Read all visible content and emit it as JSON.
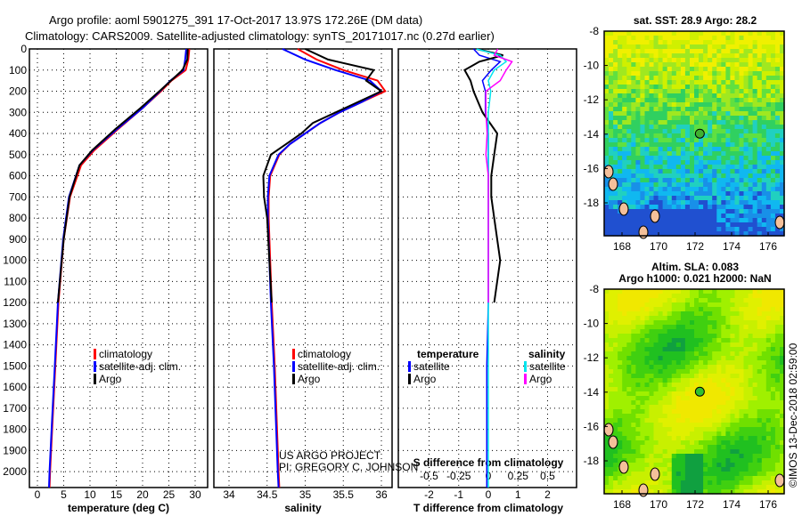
{
  "header": {
    "title1": "Argo profile: aoml 5901275_391 17-Oct-2017 13.97S 172.26E (DM data)",
    "title2": "Climatology: CARS2009. Satellite-adjusted climatology: synTS_20171017.nc (0.27d earlier)"
  },
  "credit": "©IMOS 13-Dec-2018 02:59:00",
  "project": [
    "US ARGO PROJECT",
    "PI: GREGORY C. JOHNSON"
  ],
  "colors": {
    "climatology": "#ff0000",
    "satellite": "#0000ff",
    "argo": "#000000",
    "sat_sal": "#00e5ee",
    "argo_sal": "#ff00ff"
  },
  "chart_data": [
    {
      "type": "line",
      "name": "temperature",
      "xlabel": "temperature (deg C)",
      "xlim": [
        -1.5,
        31.5
      ],
      "ylim": [
        2075,
        0
      ],
      "xticks": [
        0,
        5,
        10,
        15,
        20,
        25,
        30
      ],
      "yticks": [
        0,
        100,
        200,
        300,
        400,
        500,
        600,
        700,
        800,
        900,
        1000,
        1100,
        1200,
        1300,
        1400,
        1500,
        1600,
        1700,
        1800,
        1900,
        2000
      ],
      "legend": [
        "climatology",
        "satellite-adj. clim.",
        "Argo"
      ],
      "depth": [
        0,
        50,
        100,
        150,
        200,
        280,
        380,
        480,
        550,
        700,
        900,
        1200,
        1500,
        1800,
        2000,
        2075
      ],
      "series": [
        {
          "name": "climatology",
          "values": [
            28.9,
            28.7,
            28.2,
            25.5,
            23.5,
            20,
            15.3,
            10.8,
            8.3,
            6.2,
            5.0,
            4.0,
            3.4,
            2.8,
            2.4,
            2.3
          ]
        },
        {
          "name": "satellite-adj. clim.",
          "values": [
            28.3,
            28.1,
            27.8,
            25.3,
            23.3,
            20,
            15.1,
            10.5,
            8.0,
            6.0,
            4.9,
            3.9,
            3.3,
            2.7,
            2.3,
            2.2
          ]
        },
        {
          "name": "Argo",
          "values": [
            28.6,
            28.5,
            27.6,
            25.4,
            23.2,
            19.6,
            14.8,
            10.4,
            8.0,
            6.1,
            5.0,
            3.9,
            null,
            null,
            null,
            null
          ]
        }
      ]
    },
    {
      "type": "line",
      "name": "salinity",
      "xlabel": "salinity",
      "xlim": [
        33.8,
        36.2
      ],
      "ylim": [
        2075,
        0
      ],
      "xticks": [
        34,
        34.5,
        35,
        35.5,
        36
      ],
      "legend": [
        "climatology",
        "satellite-adj. clim.",
        "Argo"
      ],
      "depth": [
        0,
        50,
        100,
        150,
        200,
        250,
        300,
        350,
        400,
        450,
        500,
        600,
        700,
        800,
        1000,
        1200,
        1500,
        2000,
        2075
      ],
      "series": [
        {
          "name": "climatology",
          "values": [
            34.9,
            35.15,
            35.5,
            35.95,
            36.05,
            35.75,
            35.45,
            35.2,
            35.0,
            34.8,
            34.66,
            34.54,
            34.52,
            34.52,
            34.54,
            34.56,
            34.6,
            34.65,
            34.66
          ]
        },
        {
          "name": "satellite-adj. clim.",
          "values": [
            34.7,
            35.0,
            35.4,
            35.85,
            36.0,
            35.75,
            35.45,
            35.2,
            35.0,
            34.8,
            34.65,
            34.53,
            34.51,
            34.51,
            34.53,
            34.55,
            34.59,
            34.64,
            34.65
          ]
        },
        {
          "name": "Argo",
          "values": [
            35.0,
            35.3,
            35.9,
            35.8,
            36.0,
            35.7,
            35.4,
            35.1,
            34.95,
            34.75,
            34.55,
            34.45,
            34.46,
            34.5,
            34.53,
            34.56,
            null,
            null,
            null
          ]
        }
      ]
    },
    {
      "type": "line",
      "name": "difference",
      "xlabel": "T difference from climatology",
      "xlabel2": "S difference from climatology",
      "xlim_T": [
        -3,
        3
      ],
      "xlim_S": [
        -0.75,
        0.75
      ],
      "xticks_T": [
        -2,
        -1,
        0,
        1,
        2
      ],
      "xticks_S": [
        "-0.5",
        "-0.25",
        "0",
        "0.25",
        "0.5"
      ],
      "legend_T": {
        "title": "temperature",
        "items": [
          "satellite",
          "Argo"
        ]
      },
      "legend_S": {
        "title": "salinity",
        "items": [
          "satellite",
          "Argo"
        ]
      },
      "depth": [
        0,
        30,
        60,
        100,
        150,
        200,
        300,
        400,
        500,
        600,
        700,
        800,
        1000,
        1200,
        1500,
        2000,
        2075
      ],
      "series": [
        {
          "name": "T satellite",
          "values": [
            -0.5,
            -0.3,
            0.4,
            0.1,
            -0.2,
            -0.1,
            -0.1,
            0,
            0,
            0,
            0,
            0,
            0,
            0,
            -0.05,
            -0.05,
            -0.05
          ]
        },
        {
          "name": "T Argo",
          "values": [
            -0.4,
            0.5,
            -0.3,
            -0.8,
            -0.6,
            -0.5,
            -0.2,
            0.3,
            0.2,
            0.1,
            0.1,
            0.2,
            0.4,
            0.2,
            null,
            null,
            null
          ]
        },
        {
          "name": "S satellite",
          "values": [
            -0.1,
            0.1,
            0.15,
            0.05,
            0,
            0.02,
            0,
            0,
            0,
            0,
            0,
            0,
            0,
            0,
            0,
            0,
            0
          ]
        },
        {
          "name": "S Argo",
          "values": [
            0.08,
            0.05,
            0.2,
            0.15,
            0.1,
            -0.02,
            -0.02,
            -0.01,
            -0.02,
            0,
            0,
            0,
            0,
            0,
            null,
            null,
            null
          ]
        }
      ]
    }
  ],
  "maps": [
    {
      "title": [
        "sat. SST: 28.9 Argo: 28.2"
      ],
      "lon_ticks": [
        "168",
        "170",
        "172",
        "174",
        "176"
      ],
      "lat_ticks": [
        "-8",
        "-10",
        "-12",
        "-14",
        "-16",
        "-18"
      ],
      "float_lon": 172.26,
      "float_lat": -13.97
    },
    {
      "title": [
        "Altim. SLA: 0.083",
        "Argo h1000: 0.021 h2000: NaN"
      ],
      "lon_ticks": [
        "168",
        "170",
        "172",
        "174",
        "176"
      ],
      "lat_ticks": [
        "-8",
        "-10",
        "-12",
        "-14",
        "-16",
        "-18"
      ],
      "float_lon": 172.26,
      "float_lat": -13.97
    }
  ]
}
